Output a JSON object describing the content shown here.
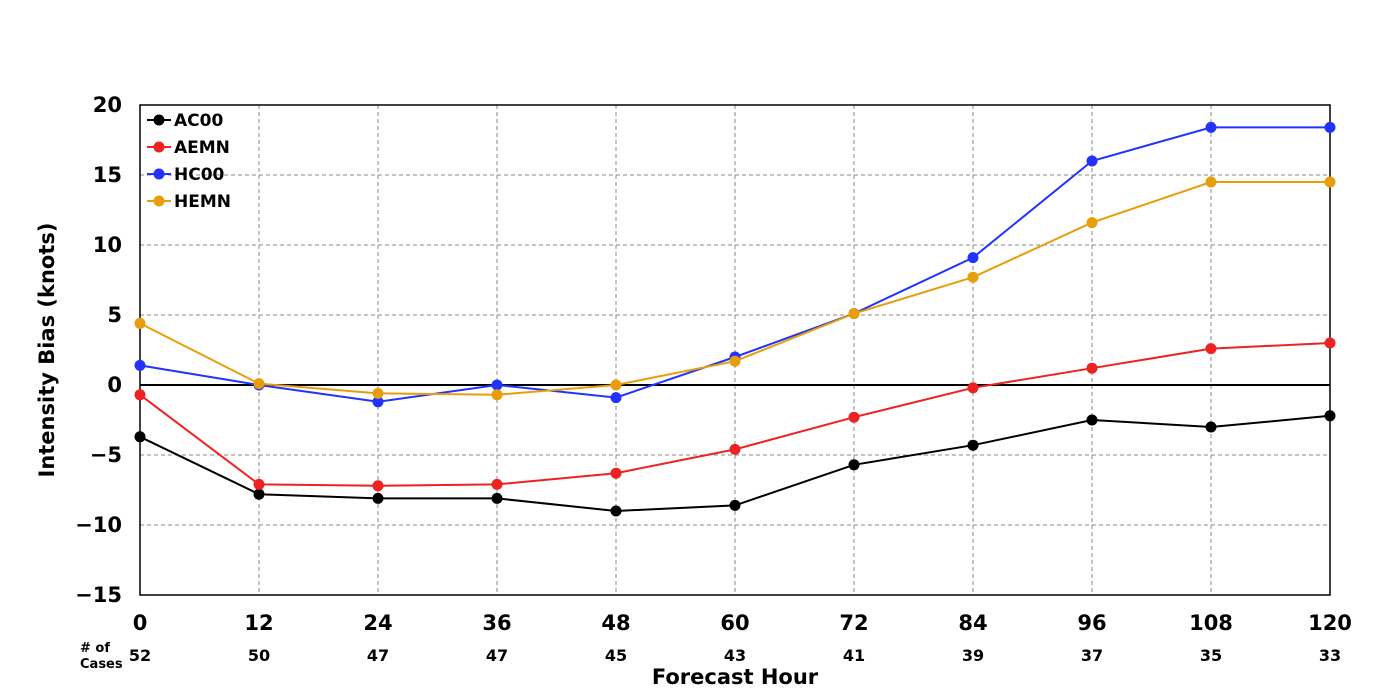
{
  "chart_data": {
    "type": "line",
    "xlabel": "Forecast Hour",
    "ylabel": "Intensity Bias (knots)",
    "x": [
      0,
      12,
      24,
      36,
      48,
      60,
      72,
      84,
      96,
      108,
      120
    ],
    "xlim": [
      0,
      120
    ],
    "ylim": [
      -15,
      20
    ],
    "yticks": [
      20,
      15,
      10,
      5,
      0,
      -5,
      -10,
      -15
    ],
    "ytick_labels": [
      "20",
      "15",
      "10",
      "5",
      "0",
      "−5",
      "−10",
      "−15"
    ],
    "grid": true,
    "legend_position": "top-left",
    "series": [
      {
        "name": "AC00",
        "color": "#000000",
        "values": [
          -3.7,
          -7.8,
          -8.1,
          -8.1,
          -9.0,
          -8.6,
          -5.7,
          -4.3,
          -2.5,
          -3.0,
          -2.2
        ]
      },
      {
        "name": "AEMN",
        "color": "#ee2222",
        "values": [
          -0.7,
          -7.1,
          -7.2,
          -7.1,
          -6.3,
          -4.6,
          -2.3,
          -0.2,
          1.2,
          2.6,
          3.0
        ]
      },
      {
        "name": "HC00",
        "color": "#2233ff",
        "values": [
          1.4,
          0.0,
          -1.2,
          0.0,
          -0.9,
          2.0,
          5.1,
          9.1,
          16.0,
          18.4,
          18.4
        ]
      },
      {
        "name": "HEMN",
        "color": "#e89e0a",
        "values": [
          4.4,
          0.1,
          -0.6,
          -0.7,
          0.0,
          1.7,
          5.1,
          7.7,
          11.6,
          14.5,
          14.5
        ]
      }
    ],
    "cases_label": "# of\nCases",
    "cases_label_lines": [
      "# of",
      "Cases"
    ],
    "cases": [
      52,
      50,
      47,
      47,
      45,
      43,
      41,
      39,
      37,
      35,
      33
    ]
  }
}
